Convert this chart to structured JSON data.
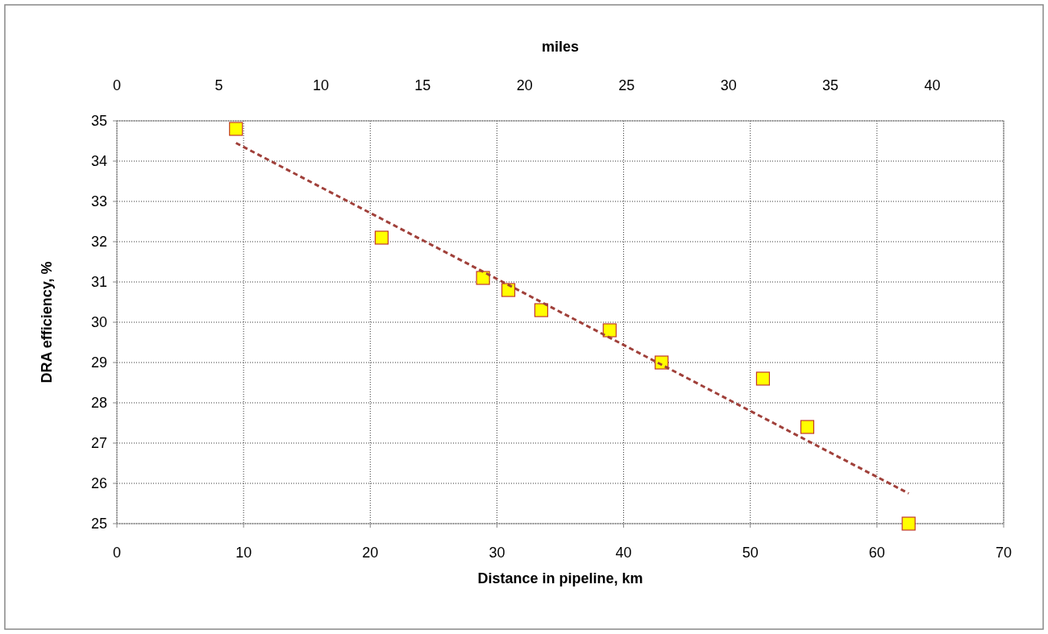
{
  "chart_data": {
    "type": "scatter",
    "xlabel": "Distance in pipeline, km",
    "ylabel": "DRA efficiency, %",
    "x2label": "miles",
    "xlim": [
      0,
      70
    ],
    "xticks": [
      0,
      10,
      20,
      30,
      40,
      50,
      60,
      70
    ],
    "ylim": [
      25,
      35
    ],
    "yticks": [
      25,
      26,
      27,
      28,
      29,
      30,
      31,
      32,
      33,
      34,
      35
    ],
    "x2lim": [
      0,
      43.496
    ],
    "x2ticks": [
      0,
      5,
      10,
      15,
      20,
      25,
      30,
      35,
      40
    ],
    "grid": true,
    "series": [
      {
        "color": "#ffff00",
        "marker": "square",
        "x": [
          9.4,
          20.9,
          28.9,
          30.9,
          33.5,
          38.9,
          43.0,
          51.0,
          54.5,
          62.5
        ],
        "values": [
          34.8,
          32.1,
          31.1,
          30.8,
          30.3,
          29.8,
          29.0,
          28.6,
          27.4,
          25.0
        ]
      },
      {
        "type": "line",
        "color": "#a0403a",
        "marker": "none",
        "line_style": "dashed",
        "x": [
          9.4,
          62.5
        ],
        "values": [
          34.45,
          25.75
        ]
      }
    ]
  }
}
